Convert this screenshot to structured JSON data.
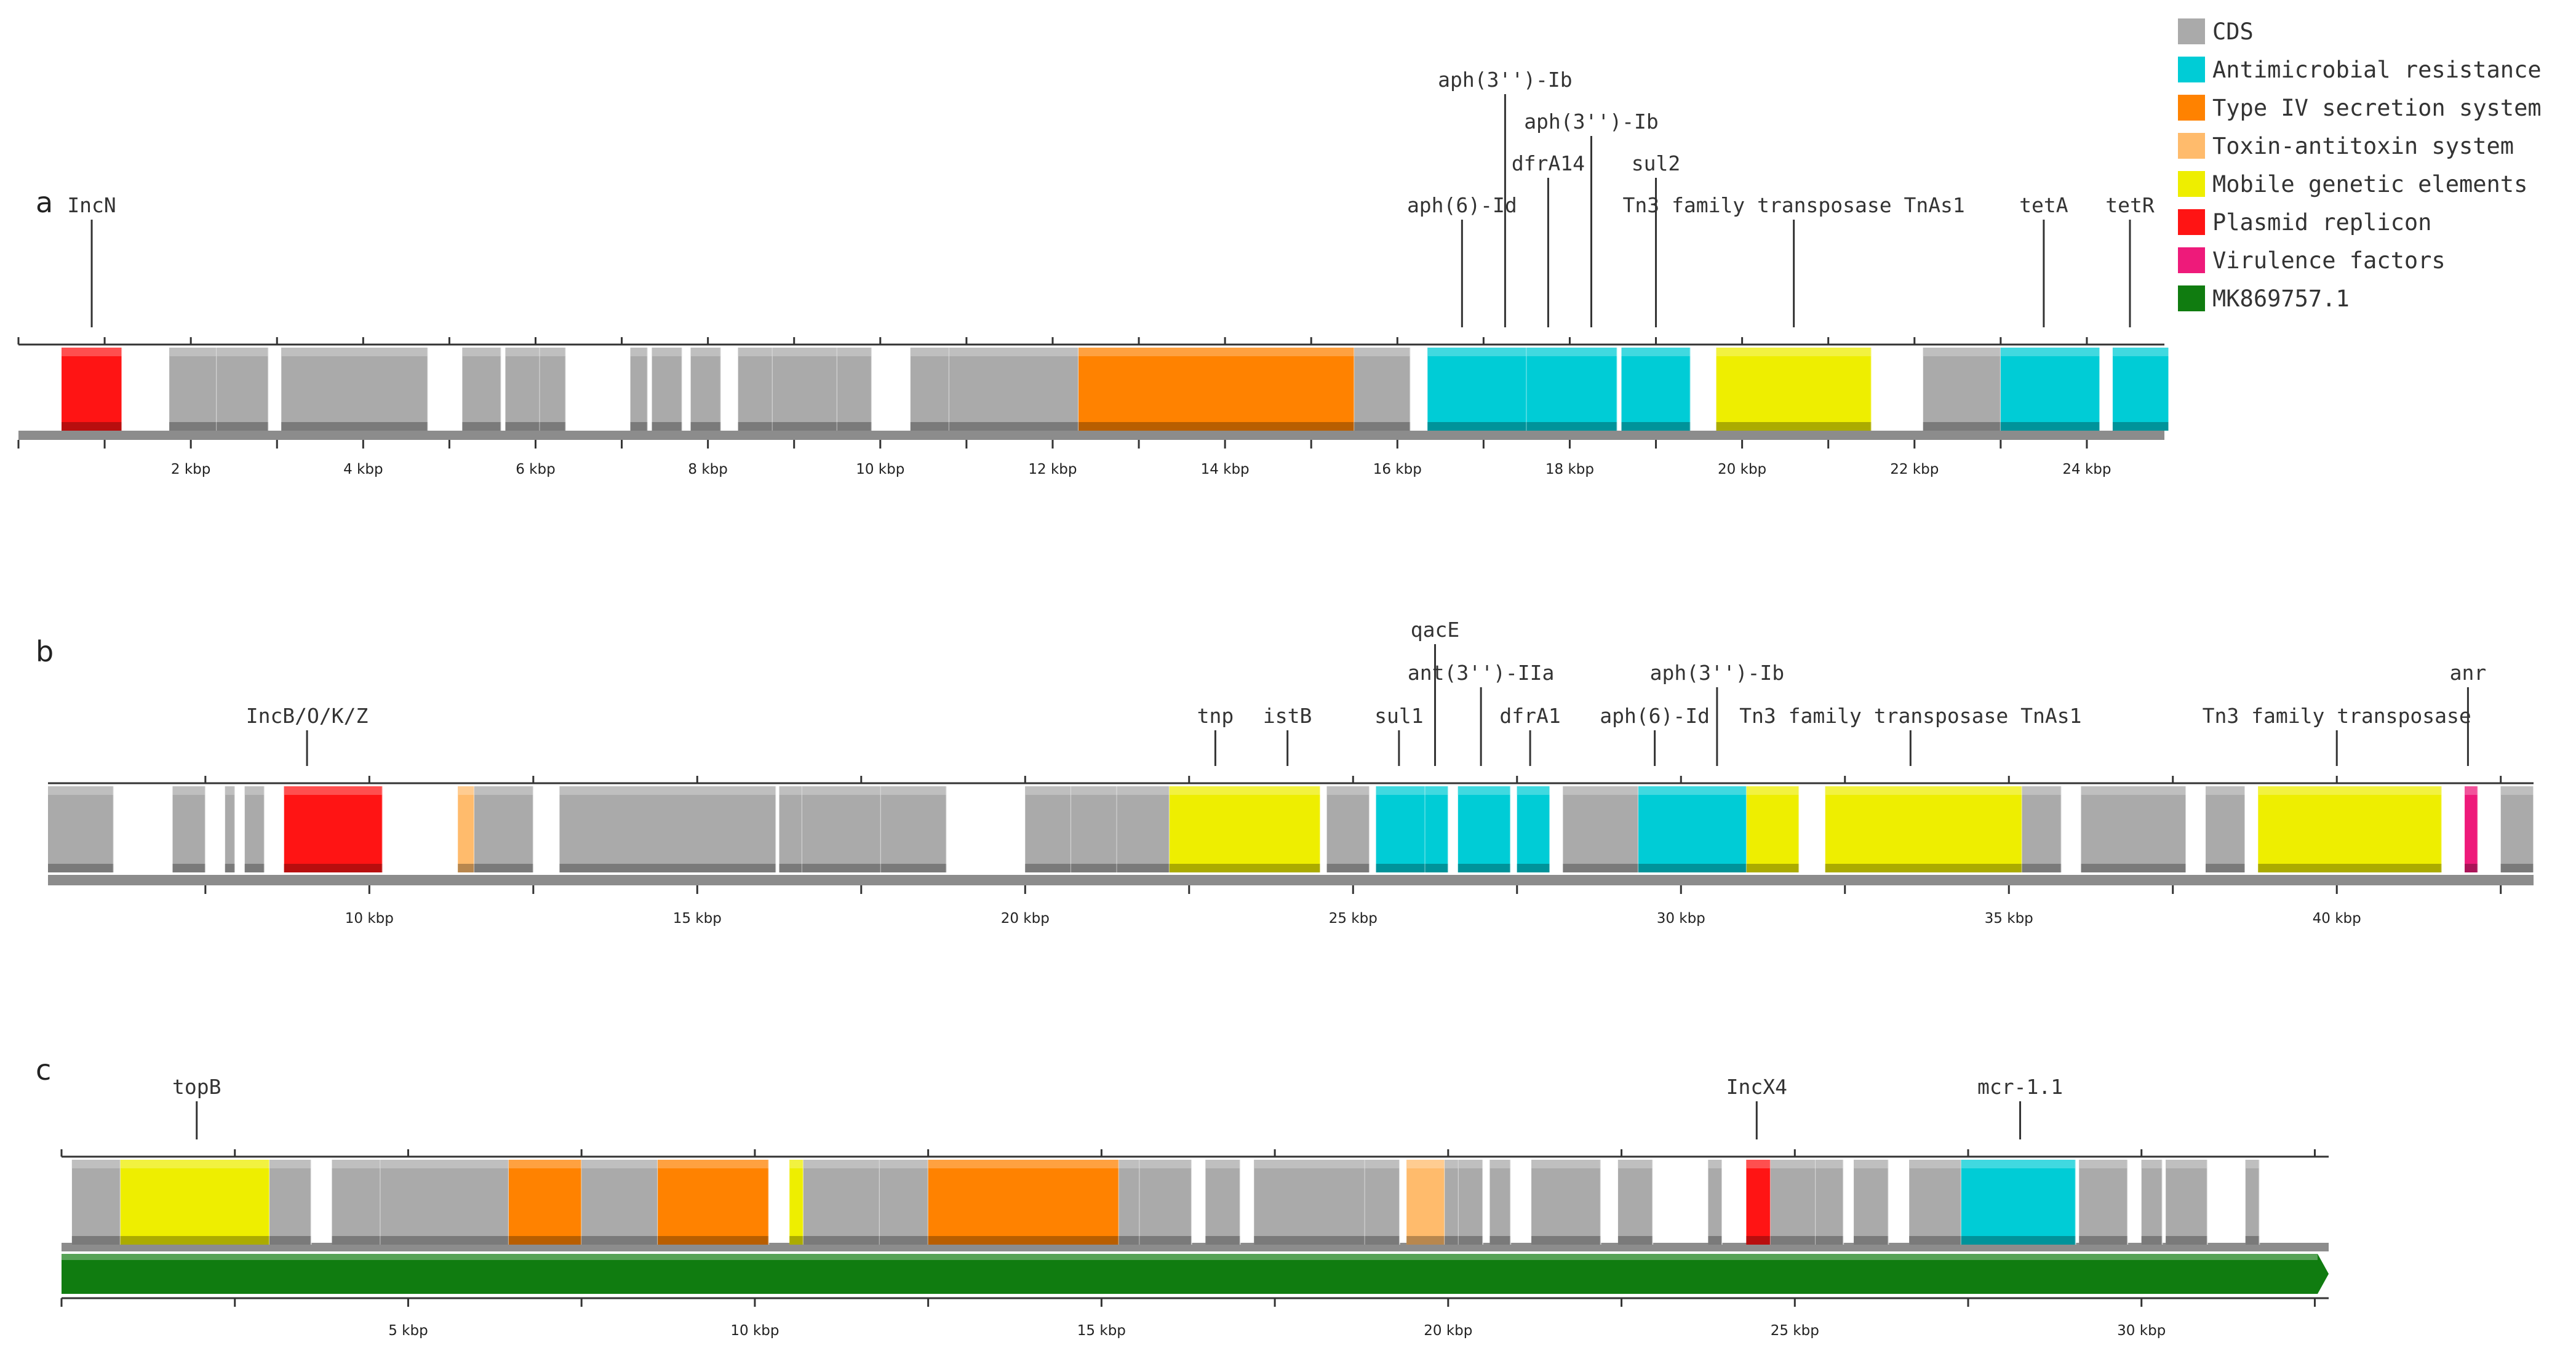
{
  "colors": {
    "CDS": "#aaaaaa",
    "AMR": "#00ccd6",
    "T4SS": "#ff8200",
    "TA": "#ffbb6c",
    "MGE": "#eeee00",
    "REP": "#ff1414",
    "VF": "#ee1a7a",
    "REF": "#107c10"
  },
  "legend": [
    {
      "key": "CDS",
      "label": "CDS"
    },
    {
      "key": "AMR",
      "label": "Antimicrobial resistance"
    },
    {
      "key": "T4SS",
      "label": "Type IV secretion system"
    },
    {
      "key": "TA",
      "label": "Toxin-antitoxin system"
    },
    {
      "key": "MGE",
      "label": "Mobile genetic elements"
    },
    {
      "key": "REP",
      "label": "Plasmid replicon"
    },
    {
      "key": "VF",
      "label": "Virulence factors"
    },
    {
      "key": "REF",
      "label": "MK869757.1"
    }
  ],
  "panels": [
    {
      "id": "a",
      "label": "a",
      "range_kbp": [
        0,
        24.9
      ],
      "major_ticks": [
        2,
        4,
        6,
        8,
        10,
        12,
        14,
        16,
        18,
        20,
        22,
        24
      ],
      "tick_unit": "kbp",
      "features": [
        {
          "start": 0.5,
          "end": 1.2,
          "type": "REP"
        },
        {
          "start": 1.75,
          "end": 2.3,
          "type": "CDS"
        },
        {
          "start": 2.3,
          "end": 2.9,
          "type": "CDS"
        },
        {
          "start": 3.05,
          "end": 4.75,
          "type": "CDS"
        },
        {
          "start": 5.15,
          "end": 5.6,
          "type": "CDS"
        },
        {
          "start": 5.65,
          "end": 6.05,
          "type": "CDS"
        },
        {
          "start": 6.05,
          "end": 6.35,
          "type": "CDS"
        },
        {
          "start": 7.1,
          "end": 7.3,
          "type": "CDS"
        },
        {
          "start": 7.35,
          "end": 7.7,
          "type": "CDS"
        },
        {
          "start": 7.8,
          "end": 8.15,
          "type": "CDS"
        },
        {
          "start": 8.35,
          "end": 8.75,
          "type": "CDS"
        },
        {
          "start": 8.75,
          "end": 9.5,
          "type": "CDS"
        },
        {
          "start": 9.5,
          "end": 9.9,
          "type": "CDS"
        },
        {
          "start": 10.35,
          "end": 10.8,
          "type": "CDS"
        },
        {
          "start": 10.8,
          "end": 12.3,
          "type": "CDS"
        },
        {
          "start": 12.3,
          "end": 15.5,
          "type": "T4SS"
        },
        {
          "start": 15.5,
          "end": 16.15,
          "type": "CDS"
        },
        {
          "start": 16.35,
          "end": 17.5,
          "type": "AMR"
        },
        {
          "start": 17.5,
          "end": 18.55,
          "type": "AMR"
        },
        {
          "start": 18.6,
          "end": 19.4,
          "type": "AMR"
        },
        {
          "start": 19.7,
          "end": 21.5,
          "type": "MGE"
        },
        {
          "start": 22.1,
          "end": 23.0,
          "type": "CDS"
        },
        {
          "start": 23.0,
          "end": 24.15,
          "type": "AMR"
        },
        {
          "start": 24.3,
          "end": 24.95,
          "type": "AMR"
        }
      ],
      "annotations": [
        {
          "label": "IncN",
          "pos": 0.85,
          "level": 0
        },
        {
          "label": "aph(6)-Id",
          "pos": 16.75,
          "level": 0
        },
        {
          "label": "aph(3'')-Ib",
          "pos": 17.25,
          "level": 3
        },
        {
          "label": "dfrA14",
          "pos": 17.75,
          "level": 1
        },
        {
          "label": "aph(3'')-Ib",
          "pos": 18.25,
          "level": 2
        },
        {
          "label": "sul2",
          "pos": 19.0,
          "level": 1
        },
        {
          "label": "Tn3 family transposase TnAs1",
          "pos": 20.6,
          "level": 0
        },
        {
          "label": "tetA",
          "pos": 23.5,
          "level": 0
        },
        {
          "label": "tetR",
          "pos": 24.5,
          "level": 0
        }
      ]
    },
    {
      "id": "b",
      "label": "b",
      "range_kbp": [
        5.1,
        43.0
      ],
      "major_ticks": [
        10,
        15,
        20,
        25,
        30,
        35,
        40
      ],
      "tick_unit": "kbp",
      "features": [
        {
          "start": 5.1,
          "end": 6.1,
          "type": "CDS"
        },
        {
          "start": 7.0,
          "end": 7.5,
          "type": "CDS"
        },
        {
          "start": 7.8,
          "end": 7.95,
          "type": "CDS"
        },
        {
          "start": 8.1,
          "end": 8.4,
          "type": "CDS"
        },
        {
          "start": 8.7,
          "end": 10.2,
          "type": "REP"
        },
        {
          "start": 11.35,
          "end": 11.6,
          "type": "TA"
        },
        {
          "start": 11.6,
          "end": 12.5,
          "type": "CDS"
        },
        {
          "start": 12.9,
          "end": 16.2,
          "type": "CDS"
        },
        {
          "start": 16.25,
          "end": 16.6,
          "type": "CDS"
        },
        {
          "start": 16.6,
          "end": 17.8,
          "type": "CDS"
        },
        {
          "start": 17.8,
          "end": 18.8,
          "type": "CDS"
        },
        {
          "start": 20.0,
          "end": 20.7,
          "type": "CDS"
        },
        {
          "start": 20.7,
          "end": 21.4,
          "type": "CDS"
        },
        {
          "start": 21.4,
          "end": 22.2,
          "type": "CDS"
        },
        {
          "start": 22.2,
          "end": 24.5,
          "type": "MGE"
        },
        {
          "start": 24.6,
          "end": 25.25,
          "type": "CDS"
        },
        {
          "start": 25.35,
          "end": 26.1,
          "type": "AMR"
        },
        {
          "start": 26.1,
          "end": 26.45,
          "type": "AMR"
        },
        {
          "start": 26.6,
          "end": 27.4,
          "type": "AMR"
        },
        {
          "start": 27.5,
          "end": 28.0,
          "type": "AMR"
        },
        {
          "start": 28.2,
          "end": 29.35,
          "type": "CDS"
        },
        {
          "start": 29.35,
          "end": 31.0,
          "type": "AMR"
        },
        {
          "start": 31.0,
          "end": 31.8,
          "type": "MGE"
        },
        {
          "start": 32.2,
          "end": 35.2,
          "type": "MGE"
        },
        {
          "start": 35.2,
          "end": 35.8,
          "type": "CDS"
        },
        {
          "start": 36.1,
          "end": 37.7,
          "type": "CDS"
        },
        {
          "start": 38.0,
          "end": 38.6,
          "type": "CDS"
        },
        {
          "start": 38.8,
          "end": 41.6,
          "type": "MGE"
        },
        {
          "start": 41.95,
          "end": 42.15,
          "type": "VF"
        },
        {
          "start": 42.5,
          "end": 43.0,
          "type": "CDS"
        }
      ],
      "annotations": [
        {
          "label": "IncB/O/K/Z",
          "pos": 9.05,
          "level": 0
        },
        {
          "label": "tnp",
          "pos": 22.9,
          "level": 0
        },
        {
          "label": "istB",
          "pos": 24.0,
          "level": 0
        },
        {
          "label": "sul1",
          "pos": 25.7,
          "level": 0
        },
        {
          "label": "qacE",
          "pos": 26.25,
          "level": 2
        },
        {
          "label": "ant(3'')-IIa",
          "pos": 26.95,
          "level": 1
        },
        {
          "label": "dfrA1",
          "pos": 27.7,
          "level": 0
        },
        {
          "label": "aph(6)-Id",
          "pos": 29.6,
          "level": 0
        },
        {
          "label": "aph(3'')-Ib",
          "pos": 30.55,
          "level": 1
        },
        {
          "label": "Tn3 family transposase TnAs1",
          "pos": 33.5,
          "level": 0
        },
        {
          "label": "Tn3 family transposase",
          "pos": 40.0,
          "level": 0
        },
        {
          "label": "anr",
          "pos": 42.0,
          "level": 1
        }
      ]
    },
    {
      "id": "c",
      "label": "c",
      "range_kbp": [
        0,
        32.7
      ],
      "major_ticks": [
        5,
        10,
        15,
        20,
        25,
        30
      ],
      "tick_unit": "kbp",
      "reference": {
        "name": "MK869757.1",
        "start": 0,
        "end": 32.7
      },
      "features": [
        {
          "start": 0.15,
          "end": 0.85,
          "type": "CDS"
        },
        {
          "start": 0.85,
          "end": 3.0,
          "type": "MGE"
        },
        {
          "start": 3.0,
          "end": 3.6,
          "type": "CDS"
        },
        {
          "start": 3.9,
          "end": 4.6,
          "type": "CDS"
        },
        {
          "start": 4.6,
          "end": 6.45,
          "type": "CDS"
        },
        {
          "start": 6.45,
          "end": 7.5,
          "type": "T4SS"
        },
        {
          "start": 7.5,
          "end": 8.6,
          "type": "CDS"
        },
        {
          "start": 8.6,
          "end": 10.2,
          "type": "T4SS"
        },
        {
          "start": 10.5,
          "end": 10.7,
          "type": "MGE"
        },
        {
          "start": 10.7,
          "end": 11.8,
          "type": "CDS"
        },
        {
          "start": 11.8,
          "end": 12.5,
          "type": "CDS"
        },
        {
          "start": 12.5,
          "end": 15.25,
          "type": "T4SS"
        },
        {
          "start": 15.25,
          "end": 15.55,
          "type": "CDS"
        },
        {
          "start": 15.55,
          "end": 16.3,
          "type": "CDS"
        },
        {
          "start": 16.5,
          "end": 17.0,
          "type": "CDS"
        },
        {
          "start": 17.2,
          "end": 18.8,
          "type": "CDS"
        },
        {
          "start": 18.8,
          "end": 19.3,
          "type": "CDS"
        },
        {
          "start": 19.4,
          "end": 19.95,
          "type": "TA"
        },
        {
          "start": 19.95,
          "end": 20.15,
          "type": "CDS"
        },
        {
          "start": 20.15,
          "end": 20.5,
          "type": "CDS"
        },
        {
          "start": 20.6,
          "end": 20.9,
          "type": "CDS"
        },
        {
          "start": 21.2,
          "end": 22.2,
          "type": "CDS"
        },
        {
          "start": 22.45,
          "end": 22.95,
          "type": "CDS"
        },
        {
          "start": 23.75,
          "end": 23.95,
          "type": "CDS"
        },
        {
          "start": 24.3,
          "end": 24.65,
          "type": "REP"
        },
        {
          "start": 24.65,
          "end": 25.3,
          "type": "CDS"
        },
        {
          "start": 25.3,
          "end": 25.7,
          "type": "CDS"
        },
        {
          "start": 25.85,
          "end": 26.35,
          "type": "CDS"
        },
        {
          "start": 26.65,
          "end": 27.4,
          "type": "CDS"
        },
        {
          "start": 27.4,
          "end": 29.05,
          "type": "AMR"
        },
        {
          "start": 29.1,
          "end": 29.8,
          "type": "CDS"
        },
        {
          "start": 30.0,
          "end": 30.3,
          "type": "CDS"
        },
        {
          "start": 30.35,
          "end": 30.95,
          "type": "CDS"
        },
        {
          "start": 31.5,
          "end": 31.7,
          "type": "CDS"
        }
      ],
      "annotations": [
        {
          "label": "topB",
          "pos": 1.95,
          "level": 0
        },
        {
          "label": "IncX4",
          "pos": 24.45,
          "level": 0
        },
        {
          "label": "mcr-1.1",
          "pos": 28.25,
          "level": 0
        }
      ]
    }
  ]
}
